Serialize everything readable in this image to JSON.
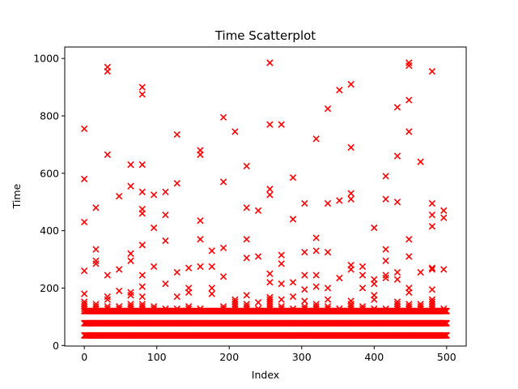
{
  "chart_data": {
    "type": "scatter",
    "title": "Time Scatterplot",
    "xlabel": "Index",
    "ylabel": "Time",
    "xlim": [
      -27,
      527
    ],
    "ylim": [
      -2,
      1040
    ],
    "xticks": [
      0,
      100,
      200,
      300,
      400,
      500
    ],
    "yticks": [
      0,
      200,
      400,
      600,
      800,
      1000
    ],
    "marker": "x",
    "color": "#ff0000",
    "grid": false,
    "band": {
      "x_from": 0,
      "x_to": 500,
      "y_from": 35,
      "y_to": 120
    },
    "columns": [
      {
        "x": 0,
        "top": 155,
        "outliers": [
          180,
          260,
          430,
          580,
          755
        ]
      },
      {
        "x": 16,
        "top": 150,
        "outliers": [
          285,
          295,
          335,
          480
        ]
      },
      {
        "x": 32,
        "top": 140,
        "outliers": [
          160,
          170,
          245,
          665,
          955,
          970
        ]
      },
      {
        "x": 48,
        "top": 140,
        "outliers": [
          190,
          265,
          520
        ]
      },
      {
        "x": 64,
        "top": 145,
        "outliers": [
          175,
          185,
          295,
          320,
          555,
          630
        ]
      },
      {
        "x": 80,
        "top": 145,
        "outliers": [
          170,
          205,
          245,
          350,
          460,
          475,
          535,
          630,
          875,
          900
        ]
      },
      {
        "x": 96,
        "top": 140,
        "outliers": [
          275,
          410,
          525
        ]
      },
      {
        "x": 112,
        "top": 135,
        "outliers": [
          215,
          365,
          455,
          535
        ]
      },
      {
        "x": 128,
        "top": 135,
        "outliers": [
          170,
          255,
          565,
          735
        ]
      },
      {
        "x": 144,
        "top": 140,
        "outliers": [
          185,
          200,
          270
        ]
      },
      {
        "x": 160,
        "top": 135,
        "outliers": [
          275,
          370,
          435,
          665,
          680
        ]
      },
      {
        "x": 176,
        "top": 125,
        "outliers": [
          180,
          200,
          275,
          330
        ]
      },
      {
        "x": 192,
        "top": 140,
        "outliers": [
          240,
          340,
          570,
          795
        ]
      },
      {
        "x": 208,
        "top": 165,
        "outliers": [
          745
        ]
      },
      {
        "x": 224,
        "top": 150,
        "outliers": [
          175,
          305,
          370,
          480,
          625
        ]
      },
      {
        "x": 240,
        "top": 135,
        "outliers": [
          150,
          310,
          470
        ]
      },
      {
        "x": 256,
        "top": 170,
        "outliers": [
          220,
          250,
          525,
          545,
          770,
          985
        ]
      },
      {
        "x": 272,
        "top": 140,
        "outliers": [
          160,
          215,
          285,
          315,
          770
        ]
      },
      {
        "x": 288,
        "top": 130,
        "outliers": [
          170,
          220,
          440,
          585
        ]
      },
      {
        "x": 304,
        "top": 140,
        "outliers": [
          155,
          195,
          245,
          325,
          495
        ]
      },
      {
        "x": 320,
        "top": 145,
        "outliers": [
          205,
          245,
          330,
          375,
          720
        ]
      },
      {
        "x": 336,
        "top": 140,
        "outliers": [
          160,
          200,
          325,
          495,
          825
        ]
      },
      {
        "x": 352,
        "top": 130,
        "outliers": [
          235,
          505,
          890
        ]
      },
      {
        "x": 368,
        "top": 145,
        "outliers": [
          155,
          265,
          280,
          510,
          530,
          690,
          910
        ]
      },
      {
        "x": 384,
        "top": 140,
        "outliers": [
          200,
          245,
          275
        ]
      },
      {
        "x": 400,
        "top": 130,
        "outliers": [
          160,
          175,
          215,
          230,
          410
        ]
      },
      {
        "x": 416,
        "top": 135,
        "outliers": [
          235,
          245,
          295,
          335,
          510,
          590
        ]
      },
      {
        "x": 432,
        "top": 155,
        "outliers": [
          230,
          255,
          500,
          660,
          830
        ]
      },
      {
        "x": 448,
        "top": 150,
        "outliers": [
          185,
          200,
          310,
          370,
          745,
          855,
          975,
          985
        ]
      },
      {
        "x": 464,
        "top": 150,
        "outliers": [
          255,
          640
        ]
      },
      {
        "x": 480,
        "top": 160,
        "outliers": [
          195,
          265,
          270,
          415,
          455,
          495,
          955
        ]
      },
      {
        "x": 496,
        "top": 130,
        "outliers": [
          265,
          445,
          470
        ]
      }
    ]
  }
}
